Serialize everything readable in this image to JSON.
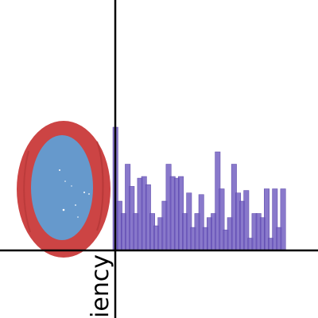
{
  "chart_data": {
    "type": "bar",
    "xlabel": "",
    "ylabel_fragment": "iency",
    "grid": false,
    "colors": {
      "bars": "#6f5bbf",
      "ring_outer": "#cc4444",
      "ring_inner": "#6699cc",
      "axis": "#000000"
    },
    "ylim": [
      0,
      150
    ],
    "values": [
      150,
      60,
      45,
      105,
      78,
      45,
      88,
      90,
      80,
      45,
      30,
      40,
      60,
      105,
      90,
      88,
      90,
      45,
      70,
      28,
      45,
      68,
      28,
      40,
      45,
      120,
      75,
      25,
      40,
      105,
      70,
      60,
      73,
      15,
      45,
      45,
      40,
      75,
      15,
      75,
      28,
      75
    ]
  }
}
